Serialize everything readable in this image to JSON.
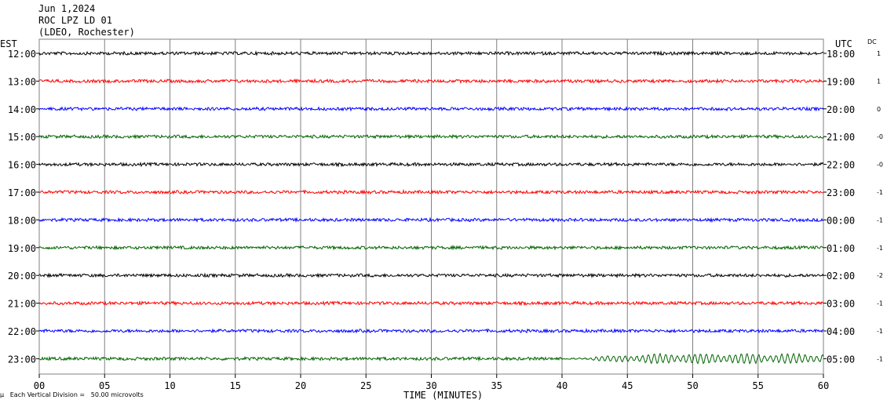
{
  "header": {
    "date": "Jun 1,2024",
    "station": "ROC LPZ LD 01",
    "network": "(LDEO, Rochester)"
  },
  "left_axis_title": "EST",
  "right_axis_title": "UTC",
  "dc_title": "DC",
  "footer": {
    "time_label": "TIME (MINUTES)",
    "scale_note": "Each Vertical Division =   50.00 microvolts",
    "corner_mark": "µ"
  },
  "colors": {
    "black": "#000000",
    "red": "#ff0000",
    "blue": "#0000ff",
    "green": "#006400",
    "grid": "#808080"
  },
  "chart_data": {
    "type": "line",
    "title": "ROC LPZ LD 01",
    "xlabel": "TIME (MINUTES)",
    "xlim": [
      0,
      60
    ],
    "x_ticks": [
      "00",
      "05",
      "10",
      "15",
      "20",
      "25",
      "30",
      "35",
      "40",
      "45",
      "50",
      "55",
      "60"
    ],
    "grid": true,
    "series": [
      {
        "est": "12:00",
        "utc": "18:00",
        "dc": "1",
        "color": "#000000",
        "event": false
      },
      {
        "est": "13:00",
        "utc": "19:00",
        "dc": "1",
        "color": "#ff0000",
        "event": false
      },
      {
        "est": "14:00",
        "utc": "20:00",
        "dc": "0",
        "color": "#0000ff",
        "event": false
      },
      {
        "est": "15:00",
        "utc": "21:00",
        "dc": "-0",
        "color": "#006400",
        "event": false
      },
      {
        "est": "16:00",
        "utc": "22:00",
        "dc": "-0",
        "color": "#000000",
        "event": false
      },
      {
        "est": "17:00",
        "utc": "23:00",
        "dc": "-1",
        "color": "#ff0000",
        "event": false
      },
      {
        "est": "18:00",
        "utc": "00:00",
        "dc": "-1",
        "color": "#0000ff",
        "event": false
      },
      {
        "est": "19:00",
        "utc": "01:00",
        "dc": "-1",
        "color": "#006400",
        "event": false
      },
      {
        "est": "20:00",
        "utc": "02:00",
        "dc": "-2",
        "color": "#000000",
        "event": false
      },
      {
        "est": "21:00",
        "utc": "03:00",
        "dc": "-1",
        "color": "#ff0000",
        "event": false
      },
      {
        "est": "22:00",
        "utc": "04:00",
        "dc": "-1",
        "color": "#0000ff",
        "event": false
      },
      {
        "est": "23:00",
        "utc": "05:00",
        "dc": "-1",
        "color": "#006400",
        "event": true,
        "event_start_min": 40,
        "event_peak_min": 47
      }
    ]
  }
}
